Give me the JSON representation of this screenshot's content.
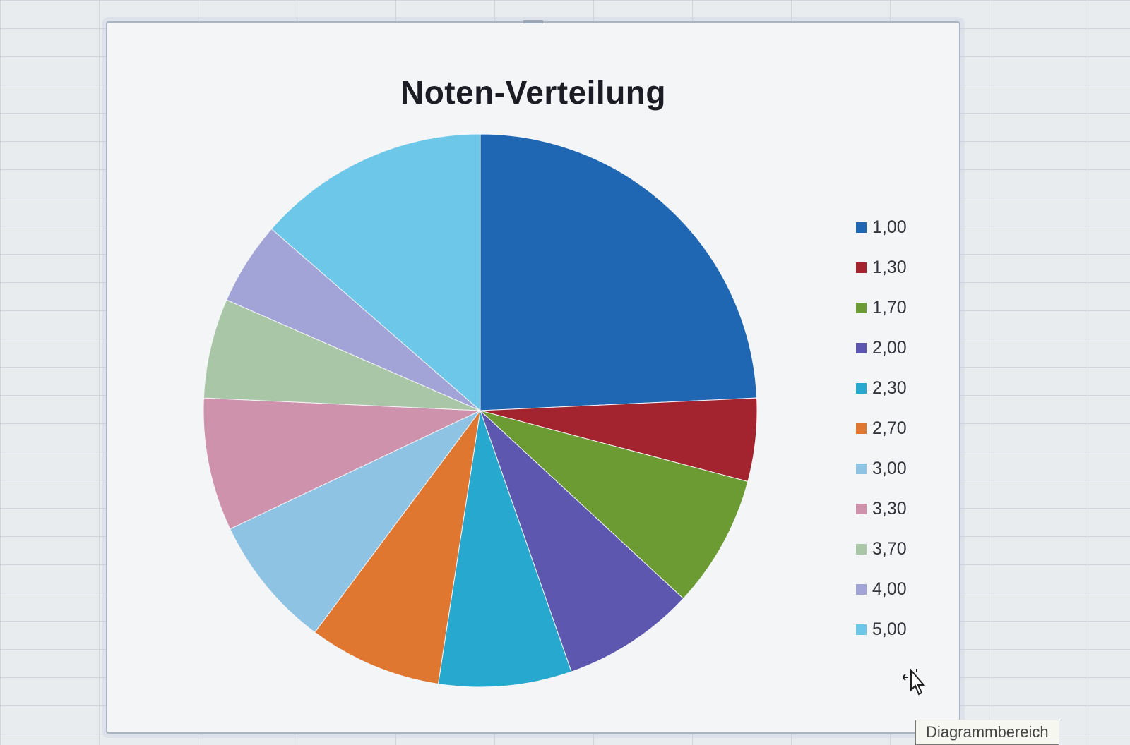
{
  "chart_data": {
    "type": "pie",
    "title": "Noten-Verteilung",
    "legend_position": "right",
    "categories": [
      "1,00",
      "1,30",
      "1,70",
      "2,00",
      "2,30",
      "2,70",
      "3,00",
      "3,30",
      "3,70",
      "4,00",
      "5,00"
    ],
    "values": [
      25,
      5,
      8,
      8,
      8,
      8,
      8,
      8,
      6,
      5,
      14
    ],
    "colors": [
      "#1f66b3",
      "#a3232e",
      "#6c9b33",
      "#5e57b0",
      "#27a9cf",
      "#e07730",
      "#8fc3e4",
      "#cf92ad",
      "#a9c6a6",
      "#a2a3d6",
      "#6cc7e8"
    ],
    "start_angle_deg": 0,
    "direction": "clockwise"
  },
  "tooltip": {
    "text": "Diagrammbereich"
  },
  "icons": {
    "cursor": "move-pointer-icon"
  }
}
